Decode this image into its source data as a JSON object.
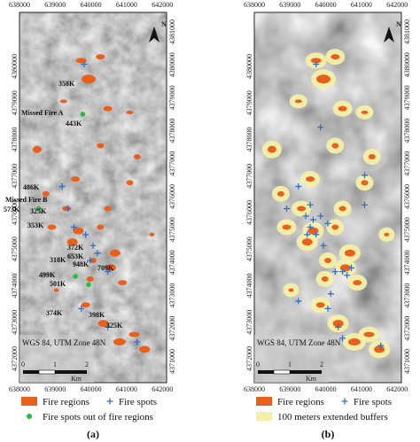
{
  "panels": [
    {
      "caption": "(a)",
      "x_labels": [
        "638000",
        "639000",
        "640000",
        "641000",
        "642000"
      ],
      "y_labels_left": [
        "4380000",
        "4379000",
        "4378000",
        "4377000",
        "4376000",
        "4375000",
        "4374000",
        "4373000",
        "4372000"
      ],
      "y_labels_right": [
        "4381000",
        "4380000",
        "4379000",
        "4378000",
        "4377000",
        "4376000",
        "4375000",
        "4374000",
        "4373000",
        "4372000",
        "4371000"
      ],
      "north": "N",
      "inset": {
        "crs": "WGS 84, UTM Zone 48N",
        "scale_labels": [
          "0",
          "1",
          "2"
        ],
        "unit": "Km"
      },
      "annotations": [
        "358K",
        "Missed Fire A",
        "443K",
        "486K",
        "Missed Fire B",
        "573K",
        "325K",
        "353K",
        "372K",
        "318K",
        "653K",
        "948K",
        "709K",
        "499K",
        "501K",
        "374K",
        "398K",
        "325K"
      ],
      "legend": [
        "Fire regions",
        "Fire spots",
        "Fire spots out of fire regions"
      ]
    },
    {
      "caption": "(b)",
      "x_labels": [
        "638000",
        "639000",
        "640000",
        "641000",
        "642000"
      ],
      "y_labels_left": [
        "4380000",
        "4379000",
        "4378000",
        "4377000",
        "4376000",
        "4375000",
        "4374000",
        "4373000",
        "4372000"
      ],
      "y_labels_right": [
        "4381000",
        "4380000",
        "4379000",
        "4378000",
        "4377000",
        "4376000",
        "4375000",
        "4374000",
        "4373000",
        "4372000",
        "4371000"
      ],
      "north": "N",
      "inset": {
        "crs": "WGS 84, UTM Zone 48N",
        "scale_labels": [
          "0",
          "1",
          "2"
        ],
        "unit": "Km"
      },
      "legend": [
        "Fire regions",
        "Fire spots",
        "100 meters extended buffers"
      ]
    }
  ]
}
